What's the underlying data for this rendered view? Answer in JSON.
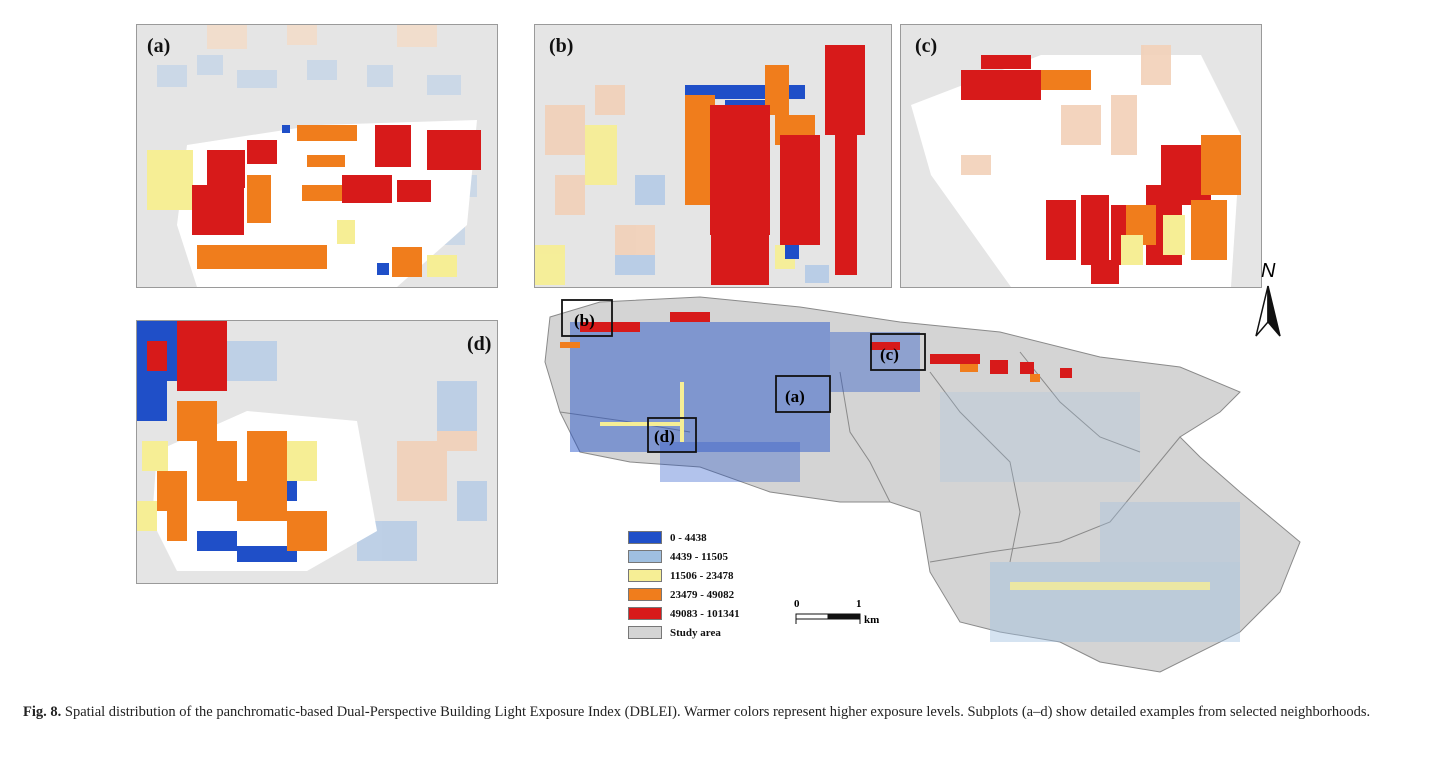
{
  "panels": [
    {
      "id": "a",
      "label": "(a)"
    },
    {
      "id": "b",
      "label": "(b)"
    },
    {
      "id": "c",
      "label": "(c)"
    },
    {
      "id": "d",
      "label": "(d)"
    }
  ],
  "map_boxes": [
    {
      "id": "a",
      "label": "(a)"
    },
    {
      "id": "b",
      "label": "(b)"
    },
    {
      "id": "c",
      "label": "(c)"
    },
    {
      "id": "d",
      "label": "(d)"
    }
  ],
  "legend": [
    {
      "label": "0 - 4438",
      "color": "#1f4fc8"
    },
    {
      "label": "4439 - 11505",
      "color": "#9fbfe0"
    },
    {
      "label": "11506 - 23478",
      "color": "#f6ee95"
    },
    {
      "label": "23479 - 49082",
      "color": "#f07d1c"
    },
    {
      "label": "49083 - 101341",
      "color": "#d71a1a"
    },
    {
      "label": "Study area",
      "color": "#d4d4d4"
    }
  ],
  "scale_bar": {
    "start": "0",
    "end": "1",
    "unit": "km"
  },
  "north_arrow": {
    "label": "N"
  },
  "caption": {
    "prefix": "Fig. 8.",
    "text": "Spatial distribution of the panchromatic-based Dual-Perspective Building Light Exposure Index (DBLEI). Warmer colors represent higher exposure levels. Subplots (a–d) show detailed examples from selected neighborhoods."
  }
}
